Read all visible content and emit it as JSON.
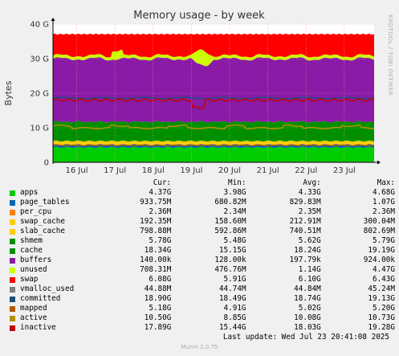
{
  "chart_data": {
    "type": "area",
    "stacked": true,
    "title": "Memory usage - by week",
    "ylabel": "Bytes",
    "ylim": [
      0,
      40
    ],
    "y_ticks": [
      "0",
      "10 G",
      "20 G",
      "30 G",
      "40 G"
    ],
    "x_ticks": [
      "16 Jul",
      "17 Jul",
      "18 Jul",
      "19 Jul",
      "20 Jul",
      "21 Jul",
      "22 Jul",
      "23 Jul"
    ],
    "grid": true,
    "side_text": "RRDTOOL / TOBI OETIKER",
    "series": [
      {
        "name": "apps",
        "color": "#00cc00",
        "cur": "4.37G",
        "min": "3.98G",
        "avg": "4.33G",
        "max": "4.68G"
      },
      {
        "name": "page_tables",
        "color": "#0066b3",
        "cur": "933.75M",
        "min": "680.82M",
        "avg": "829.83M",
        "max": "1.07G"
      },
      {
        "name": "per_cpu",
        "color": "#ff8000",
        "cur": "2.36M",
        "min": "2.34M",
        "avg": "2.35M",
        "max": "2.36M"
      },
      {
        "name": "swap_cache",
        "color": "#ffcc00",
        "cur": "192.35M",
        "min": "158.60M",
        "avg": "212.91M",
        "max": "300.04M"
      },
      {
        "name": "slab_cache",
        "color": "#ffcc00",
        "cur": "798.88M",
        "min": "592.86M",
        "avg": "740.51M",
        "max": "802.69M"
      },
      {
        "name": "shmem",
        "color": "#008f00",
        "cur": "5.78G",
        "min": "5.48G",
        "avg": "5.62G",
        "max": "5.79G"
      },
      {
        "name": "cache",
        "color": "#008f00",
        "cur": "18.34G",
        "min": "15.15G",
        "avg": "18.24G",
        "max": "19.19G"
      },
      {
        "name": "buffers",
        "color": "#8a1ba7",
        "cur": "140.00k",
        "min": "128.00k",
        "avg": "197.79k",
        "max": "924.00k"
      },
      {
        "name": "unused",
        "color": "#ccff00",
        "cur": "708.31M",
        "min": "476.76M",
        "avg": "1.14G",
        "max": "4.47G"
      },
      {
        "name": "swap",
        "color": "#ff0000",
        "cur": "6.08G",
        "min": "5.91G",
        "avg": "6.10G",
        "max": "6.43G"
      },
      {
        "name": "vmalloc_used",
        "color": "#7f7f7f",
        "cur": "44.88M",
        "min": "44.74M",
        "avg": "44.84M",
        "max": "45.24M"
      },
      {
        "name": "committed",
        "color": "#1f4e79",
        "cur": "18.90G",
        "min": "18.49G",
        "avg": "18.74G",
        "max": "19.13G"
      },
      {
        "name": "mapped",
        "color": "#b35a00",
        "cur": "5.18G",
        "min": "4.91G",
        "avg": "5.02G",
        "max": "5.20G"
      },
      {
        "name": "active",
        "color": "#b38f00",
        "cur": "10.50G",
        "min": "8.85G",
        "avg": "10.08G",
        "max": "10.73G"
      },
      {
        "name": "inactive",
        "color": "#c40000",
        "cur": "17.89G",
        "min": "15.44G",
        "avg": "18.03G",
        "max": "19.28G"
      }
    ]
  },
  "legend_headers": {
    "cur": "Cur:",
    "min": "Min:",
    "avg": "Avg:",
    "max": "Max:"
  },
  "last_update": "Last update: Wed Jul 23 20:41:08 2025",
  "version": "Munin 2.0.75"
}
